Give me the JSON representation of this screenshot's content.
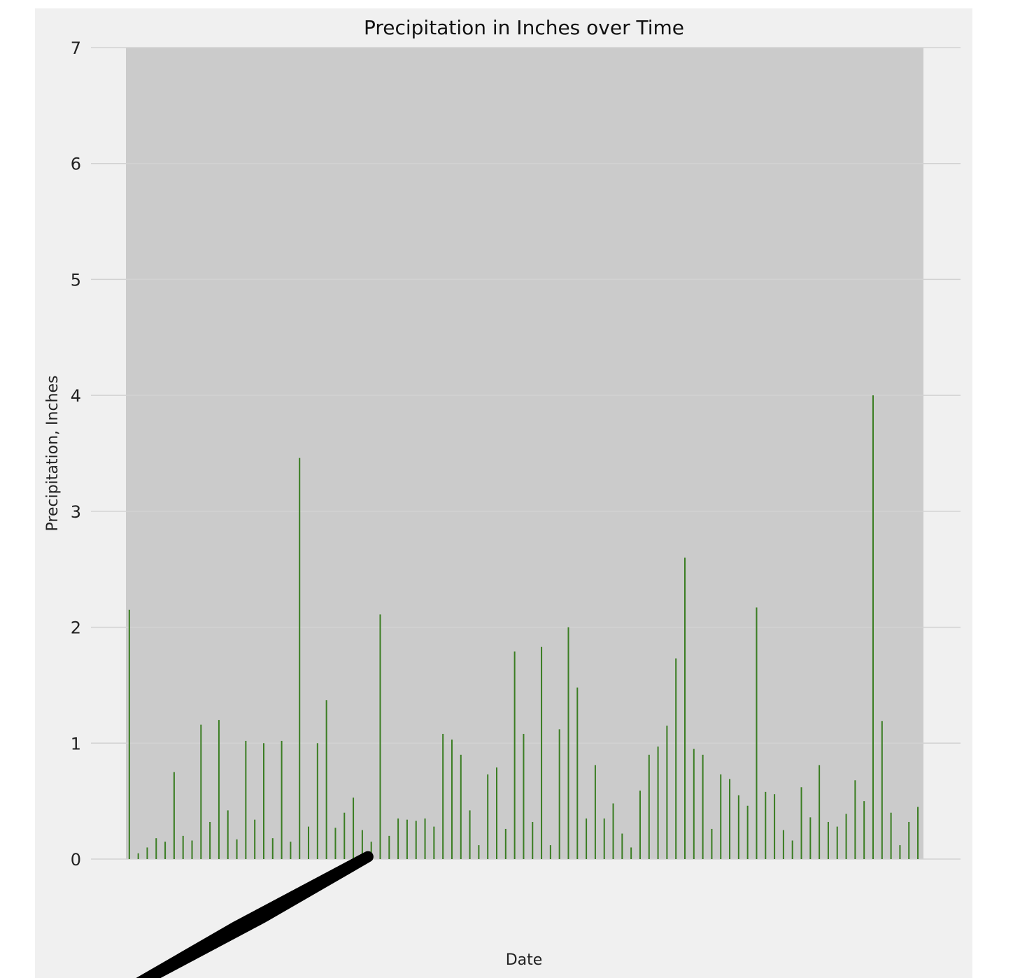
{
  "chart_data": {
    "type": "bar",
    "title": "Precipitation in Inches over Time",
    "xlabel": "Date",
    "ylabel": "Precipitation, Inches",
    "ylim": [
      0,
      7
    ],
    "yticks": [
      "0",
      "1",
      "2",
      "3",
      "4",
      "5",
      "6",
      "7"
    ],
    "grid": true,
    "bar_color": "#3a7d22",
    "plot_background": "#cbcbcb",
    "figure_background": "#f0f0f0",
    "series": [
      {
        "values": [
          2.15,
          0.05,
          0.1,
          0.18,
          0.15,
          0.75,
          0.2,
          0.16,
          1.16,
          0.32,
          1.2,
          0.42,
          0.17,
          1.02,
          0.34,
          1.0,
          0.18,
          1.02,
          0.15,
          3.46,
          0.28,
          1.0,
          1.37,
          0.27,
          0.4,
          0.53,
          0.25,
          0.15,
          2.11,
          0.2,
          0.35,
          0.34,
          0.33,
          0.35,
          0.28,
          1.08,
          1.03,
          0.9,
          0.42,
          0.12,
          0.73,
          0.79,
          0.26,
          1.79,
          1.08,
          0.32,
          1.83,
          0.12,
          1.12,
          2.0,
          1.48,
          0.35,
          0.81,
          0.35,
          0.48,
          0.22,
          0.1,
          0.59,
          0.9,
          0.97,
          1.15,
          1.73,
          2.6,
          0.95,
          0.9,
          0.26,
          0.73,
          0.69,
          0.55,
          0.46,
          2.17,
          0.58,
          0.56,
          0.25,
          0.16,
          0.62,
          0.36,
          0.81,
          0.32,
          0.28,
          0.39,
          0.68,
          0.5,
          4.0,
          1.19,
          0.4,
          0.12,
          0.32,
          0.45
        ]
      }
    ],
    "x_tick_labels_note": ""
  }
}
